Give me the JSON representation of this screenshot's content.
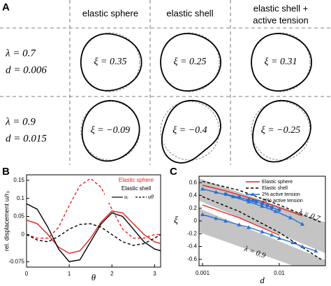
{
  "panel_a": {
    "label": "A",
    "columns": [
      [
        "elastic sphere"
      ],
      [
        "elastic shell"
      ],
      [
        "elastic shell +",
        "active tension"
      ]
    ],
    "rows": [
      {
        "lambda": "λ = 0.7",
        "d": "d = 0.006",
        "xi": [
          "ξ = 0.35",
          "ξ = 0.25",
          "ξ = 0.31"
        ]
      },
      {
        "lambda": "λ = 0.9",
        "d": "d = 0.015",
        "xi": [
          "ξ = −0.09",
          "ξ = −0.4",
          "ξ = −0.25"
        ]
      }
    ]
  },
  "chart_data": [
    {
      "type": "line",
      "label": "B",
      "xlabel": "θ",
      "ylabel": "rel. displacement uᵢ/r₀",
      "x": [
        0,
        0.25,
        0.5,
        0.75,
        1,
        1.25,
        1.5,
        1.75,
        2,
        2.25,
        2.5,
        2.75,
        3,
        3.14
      ],
      "xlim": [
        0,
        3.14
      ],
      "xticks": [
        0,
        1,
        2,
        3
      ],
      "ylim": [
        -0.09,
        0.165
      ],
      "yticks": [
        0.15,
        0.1,
        0.05,
        0,
        -0.075
      ],
      "legend": [
        "Elastic sphere",
        "Elastic shell",
        "uᵣ",
        "uθ"
      ],
      "series": [
        {
          "color": "#e8221f",
          "dash": false,
          "values": [
            0.04,
            0.03,
            0.0,
            -0.035,
            -0.052,
            -0.045,
            -0.01,
            0.035,
            0.065,
            0.06,
            0.03,
            0.0,
            -0.02,
            -0.025
          ]
        },
        {
          "color": "#000000",
          "dash": false,
          "values": [
            0.085,
            0.07,
            0.02,
            -0.04,
            -0.075,
            -0.07,
            -0.02,
            0.03,
            0.06,
            0.05,
            0.015,
            -0.02,
            -0.04,
            -0.045
          ]
        },
        {
          "color": "#e8221f",
          "dash": true,
          "values": [
            0,
            -0.01,
            -0.01,
            0.02,
            0.08,
            0.135,
            0.155,
            0.13,
            0.07,
            0.015,
            -0.01,
            -0.01,
            0,
            0
          ]
        },
        {
          "color": "#000000",
          "dash": true,
          "values": [
            0,
            -0.015,
            -0.02,
            -0.005,
            0.015,
            0.028,
            0.03,
            0.02,
            0.0,
            -0.02,
            -0.03,
            -0.025,
            -0.01,
            0
          ]
        }
      ]
    },
    {
      "type": "scatter",
      "label": "C",
      "xlabel": "d",
      "ylabel": "ξ",
      "xlog": true,
      "xlim": [
        0.0009,
        0.04
      ],
      "xticks": [
        0.001,
        0.01
      ],
      "ylim": [
        -0.7,
        0.7
      ],
      "yticks": [
        0.6,
        0.4,
        0.2,
        0,
        -0.2,
        -0.4,
        -0.6
      ],
      "annotations": [
        "λ = 0.7",
        "λ = 0.9"
      ],
      "legend": [
        {
          "name": "Elastic sphere",
          "color": "#e8221f",
          "dash": false,
          "marker": "none"
        },
        {
          "name": "Elastic shell",
          "color": "#000000",
          "dash": true,
          "marker": "none"
        },
        {
          "name": "2% active tension",
          "color": "#2a6fd6",
          "dash": false,
          "marker": "triangle"
        },
        {
          "name": "10% active tension",
          "color": "#2a6fd6",
          "dash": false,
          "marker": "circle"
        }
      ],
      "series": [
        {
          "color": "#e8221f",
          "dash": false,
          "marker": "none",
          "x": [
            0.001,
            0.002,
            0.005,
            0.01,
            0.02
          ],
          "values": [
            0.56,
            0.47,
            0.33,
            0.21,
            0.08
          ]
        },
        {
          "color": "#000000",
          "dash": true,
          "marker": "none",
          "x": [
            0.001,
            0.003,
            0.01,
            0.035
          ],
          "values": [
            0.62,
            0.48,
            0.25,
            -0.02
          ]
        },
        {
          "color": "#2a6fd6",
          "dash": false,
          "marker": "triangle",
          "x": [
            0.001,
            0.0015,
            0.0025,
            0.004,
            0.006,
            0.009,
            0.014,
            0.02
          ],
          "values": [
            0.5,
            0.45,
            0.38,
            0.3,
            0.23,
            0.15,
            0.05,
            -0.05
          ]
        },
        {
          "color": "#2a6fd6",
          "dash": false,
          "marker": "circle",
          "x": [
            0.002,
            0.003,
            0.004,
            0.005,
            0.006,
            0.007,
            0.008,
            0.01
          ],
          "values": [
            0.42,
            0.37,
            0.33,
            0.3,
            0.27,
            0.24,
            0.21,
            0.17
          ]
        },
        {
          "color": "#e8221f",
          "dash": false,
          "marker": "none",
          "x": [
            0.001,
            0.003,
            0.01
          ],
          "values": [
            0.25,
            0.05,
            -0.22
          ]
        },
        {
          "color": "#000000",
          "dash": true,
          "marker": "none",
          "x": [
            0.001,
            0.003,
            0.01,
            0.035
          ],
          "values": [
            0.38,
            0.15,
            -0.18,
            -0.6
          ]
        },
        {
          "color": "#2a6fd6",
          "dash": false,
          "marker": "triangle",
          "x": [
            0.001,
            0.0015,
            0.002,
            0.003,
            0.004,
            0.006,
            0.008,
            0.01,
            0.015,
            0.02,
            0.03
          ],
          "values": [
            0.1,
            0.04,
            0.0,
            -0.06,
            -0.1,
            -0.17,
            -0.22,
            -0.27,
            -0.34,
            -0.4,
            -0.47
          ]
        }
      ]
    }
  ]
}
